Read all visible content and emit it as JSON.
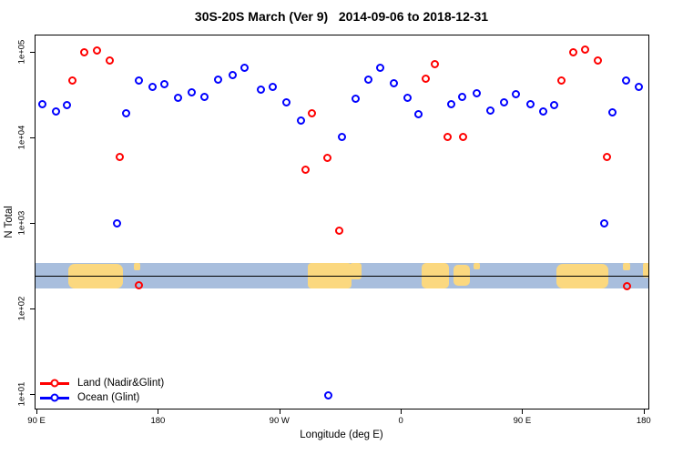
{
  "title": "30S-20S March (Ver 9)   2014-09-06 to 2018-12-31",
  "chart_data": {
    "type": "scatter",
    "title": "30S-20S March (Ver 9)   2014-09-06 to 2018-12-31",
    "xlabel": "Longitude (deg E)",
    "ylabel": "N Total",
    "x_axis": {
      "lim": [
        88.6,
        544.2
      ],
      "ticks": [
        90,
        180,
        270,
        360,
        450,
        540
      ],
      "tick_labels": [
        "90 E",
        "180",
        "90 W",
        "0",
        "90 E",
        "180"
      ],
      "note": "longitude increases eastward from 90E, wrapping through 180, 90W, 0, 90E to 180"
    },
    "y_axis": {
      "scale": "log10",
      "log10_lim": [
        0.819,
        5.202
      ],
      "ticks_log10": [
        1,
        2,
        3,
        4,
        5
      ],
      "tick_labels": [
        "1e+01",
        "1e+02",
        "1e+03",
        "1e+04",
        "1e+05"
      ]
    },
    "grid": false,
    "legend_position": "bottom-left",
    "legend": [
      {
        "label": "Land (Nadir&Glint)",
        "color": "#FF0000"
      },
      {
        "label": "Ocean (Glint)",
        "color": "#0000FF"
      }
    ],
    "series": [
      {
        "name": "Land (Nadir&Glint)",
        "color": "#FF0000",
        "marker": "open-circle",
        "points_x_log10y": [
          [
            116.3,
            4.67
          ],
          [
            125.1,
            4.99
          ],
          [
            134.5,
            5.02
          ],
          [
            144.6,
            4.9
          ],
          [
            151.4,
            3.77
          ],
          [
            166.2,
            2.27
          ],
          [
            289.7,
            3.62
          ],
          [
            294.4,
            4.28
          ],
          [
            305.9,
            3.76
          ],
          [
            314.7,
            2.91
          ],
          [
            378.7,
            4.69
          ],
          [
            385.5,
            4.86
          ],
          [
            395.0,
            4.0
          ],
          [
            406.4,
            4.0
          ],
          [
            479.3,
            4.67
          ],
          [
            488.1,
            4.99
          ],
          [
            496.9,
            5.03
          ],
          [
            506.3,
            4.9
          ],
          [
            513.1,
            3.77
          ],
          [
            527.9,
            2.26
          ]
        ]
      },
      {
        "name": "Ocean (Glint)",
        "color": "#0000FF",
        "marker": "open-circle",
        "points_x_log10y": [
          [
            94.0,
            4.39
          ],
          [
            104.2,
            4.3
          ],
          [
            112.3,
            4.38
          ],
          [
            149.4,
            2.99
          ],
          [
            156.1,
            4.28
          ],
          [
            165.6,
            4.67
          ],
          [
            175.7,
            4.59
          ],
          [
            184.5,
            4.62
          ],
          [
            194.6,
            4.46
          ],
          [
            204.7,
            4.53
          ],
          [
            214.8,
            4.47
          ],
          [
            224.9,
            4.68
          ],
          [
            235.1,
            4.73
          ],
          [
            244.5,
            4.81
          ],
          [
            256.0,
            4.56
          ],
          [
            265.4,
            4.59
          ],
          [
            274.9,
            4.41
          ],
          [
            285.7,
            4.2
          ],
          [
            306.6,
            0.98
          ],
          [
            316.7,
            4.0
          ],
          [
            326.8,
            4.45
          ],
          [
            336.2,
            4.68
          ],
          [
            345.0,
            4.81
          ],
          [
            355.1,
            4.63
          ],
          [
            365.2,
            4.46
          ],
          [
            373.3,
            4.27
          ],
          [
            397.6,
            4.39
          ],
          [
            405.7,
            4.47
          ],
          [
            416.5,
            4.52
          ],
          [
            426.6,
            4.31
          ],
          [
            436.8,
            4.41
          ],
          [
            445.5,
            4.51
          ],
          [
            456.3,
            4.39
          ],
          [
            465.8,
            4.3
          ],
          [
            473.9,
            4.38
          ],
          [
            511.0,
            2.99
          ],
          [
            517.1,
            4.29
          ],
          [
            527.2,
            4.67
          ],
          [
            536.6,
            4.59
          ]
        ]
      }
    ],
    "map_band": {
      "description": "latitude-band world map strip drawn across the plot",
      "log10_top": 2.53,
      "log10_bottom": 2.23,
      "line_log10": 2.38,
      "ocean_color": "#A8BEDD",
      "land_color": "#FBD87F",
      "line_color": "#000000",
      "land_shapes": [
        {
          "name": "australia-pass1",
          "x0": 0.055,
          "x1": 0.144,
          "v0": 0.04,
          "v1": 1.0,
          "r": 7
        },
        {
          "name": "new-caledonia-pass1",
          "x0": 0.162,
          "x1": 0.172,
          "v0": 0.0,
          "v1": 0.28,
          "r": 2
        },
        {
          "name": "south-america",
          "x0": 0.444,
          "x1": 0.516,
          "v0": 0.0,
          "v1": 1.0,
          "r": 4
        },
        {
          "name": "south-america-east",
          "x0": 0.512,
          "x1": 0.532,
          "v0": 0.0,
          "v1": 0.62,
          "r": 3
        },
        {
          "name": "africa",
          "x0": 0.63,
          "x1": 0.674,
          "v0": 0.0,
          "v1": 1.0,
          "r": 5
        },
        {
          "name": "madagascar",
          "x0": 0.682,
          "x1": 0.708,
          "v0": 0.06,
          "v1": 0.88,
          "r": 5
        },
        {
          "name": "islets",
          "x0": 0.714,
          "x1": 0.724,
          "v0": 0.0,
          "v1": 0.25,
          "r": 2
        },
        {
          "name": "australia-pass2",
          "x0": 0.849,
          "x1": 0.933,
          "v0": 0.04,
          "v1": 1.0,
          "r": 7
        },
        {
          "name": "new-caledonia-pass2",
          "x0": 0.957,
          "x1": 0.969,
          "v0": 0.0,
          "v1": 0.28,
          "r": 2
        },
        {
          "name": "fiji-edge",
          "x0": 0.99,
          "x1": 1.0,
          "v0": 0.0,
          "v1": 0.55,
          "r": 2
        }
      ]
    }
  }
}
